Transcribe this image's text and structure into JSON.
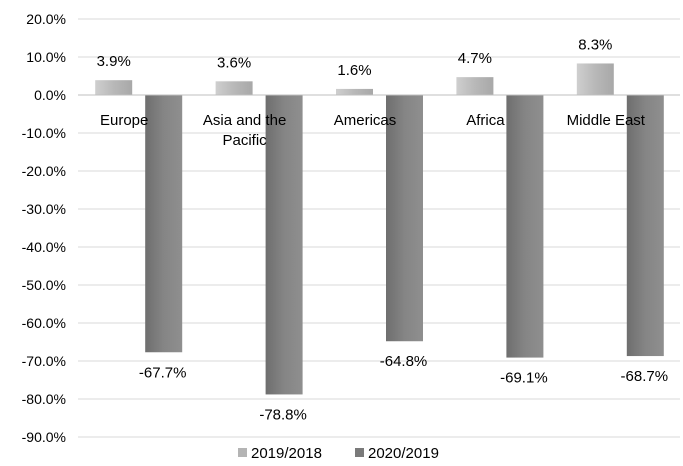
{
  "chart_data": {
    "type": "bar",
    "categories": [
      "Europe",
      "Asia and the Pacific",
      "Americas",
      "Africa",
      "Middle East"
    ],
    "series": [
      {
        "name": "2019/2018",
        "values": [
          3.9,
          3.6,
          1.6,
          4.7,
          8.3
        ],
        "labels": [
          "3.9%",
          "3.6%",
          "1.6%",
          "4.7%",
          "8.3%"
        ],
        "color": "#b4b4b4"
      },
      {
        "name": "2020/2019",
        "values": [
          -67.7,
          -78.8,
          -64.8,
          -69.1,
          -68.7
        ],
        "labels": [
          "-67.7%",
          "-78.8%",
          "-64.8%",
          "-69.1%",
          "-68.7%"
        ],
        "color": "#7a7a7a"
      }
    ],
    "yticks": [
      20,
      10,
      0,
      -10,
      -20,
      -30,
      -40,
      -50,
      -60,
      -70,
      -80,
      -90
    ],
    "ytick_labels": [
      "20.0%",
      "10.0%",
      "0.0%",
      "-10.0%",
      "-20.0%",
      "-30.0%",
      "-40.0%",
      "-50.0%",
      "-60.0%",
      "-70.0%",
      "-80.0%",
      "-90.0%"
    ],
    "ylim": [
      -90,
      20
    ],
    "grid": true,
    "legend_position": "bottom"
  }
}
